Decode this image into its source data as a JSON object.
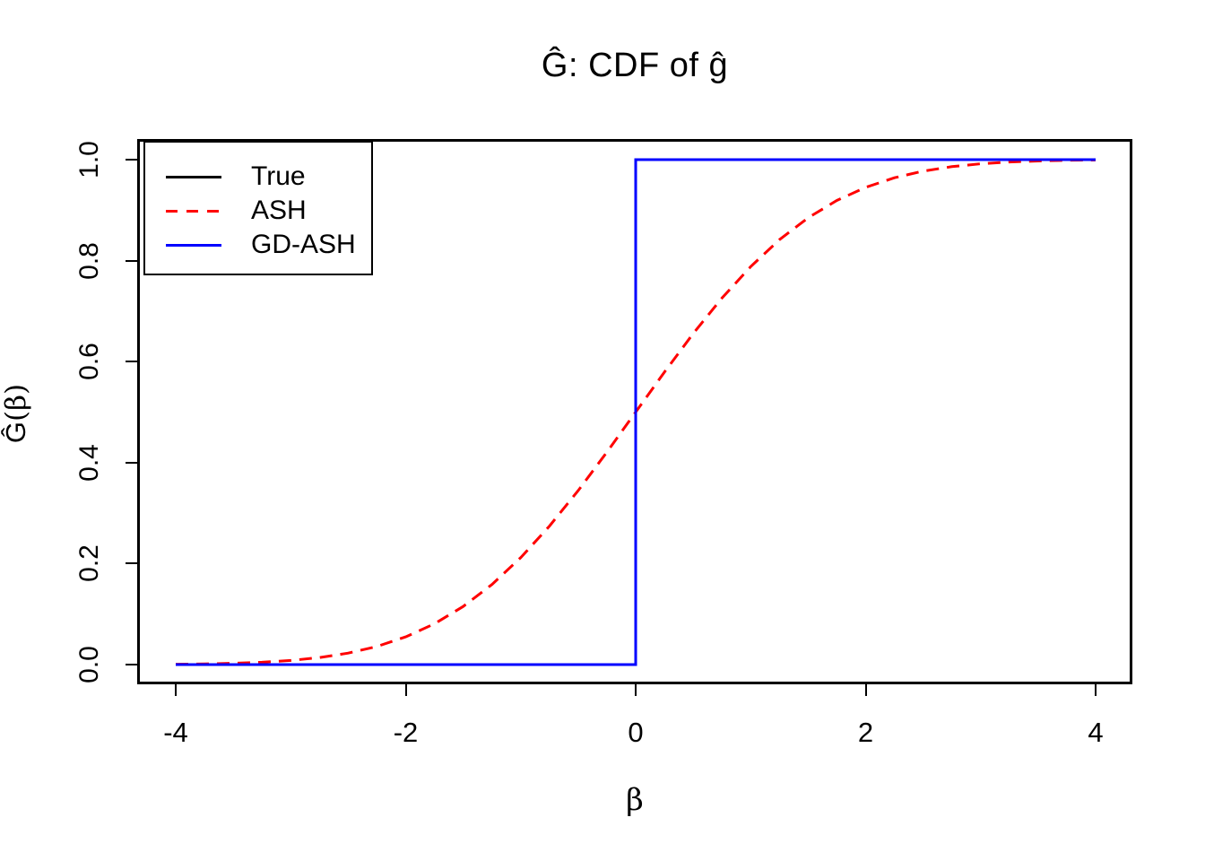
{
  "figure": {
    "background": "#FFFFFF",
    "axis_color": "#000000",
    "x_axis": {
      "tick_values": [
        -4,
        -2,
        0,
        2,
        4
      ],
      "tick_labels": [
        "-4",
        "-2",
        "0",
        "2",
        "4"
      ]
    },
    "y_axis": {
      "label_pre": "Ĝ",
      "label_rest": "(β)",
      "tick_values": [
        0.0,
        0.2,
        0.4,
        0.6,
        0.8,
        1.0
      ],
      "tick_labels": [
        "0.0",
        "0.2",
        "0.4",
        "0.6",
        "0.8",
        "1.0"
      ]
    }
  },
  "chart_data": {
    "type": "line",
    "title": "Ĝ: CDF of ĝ",
    "xlabel": "β",
    "ylabel": "Ĝ(β)",
    "xlim": [
      -4,
      4
    ],
    "ylim": [
      0,
      1
    ],
    "grid": false,
    "legend_position": "top-left",
    "series": [
      {
        "name": "True",
        "color": "#000000",
        "line_style": "solid",
        "x": [
          -4,
          0,
          0,
          4
        ],
        "y": [
          0,
          0,
          1,
          1
        ]
      },
      {
        "name": "ASH",
        "color": "#FF0000",
        "line_style": "dashed",
        "x": [
          -4,
          -3.75,
          -3.5,
          -3.25,
          -3,
          -2.75,
          -2.5,
          -2.25,
          -2,
          -1.75,
          -1.5,
          -1.25,
          -1,
          -0.75,
          -0.5,
          -0.25,
          0,
          0.25,
          0.5,
          0.75,
          1,
          1.25,
          1.5,
          1.75,
          2,
          2.25,
          2.5,
          2.75,
          3,
          3.25,
          3.5,
          3.75,
          4
        ],
        "y": [
          0.0007,
          0.0013,
          0.0026,
          0.0047,
          0.0082,
          0.0139,
          0.0228,
          0.0359,
          0.0548,
          0.0808,
          0.1151,
          0.1587,
          0.2119,
          0.2743,
          0.3446,
          0.4207,
          0.5,
          0.5793,
          0.6554,
          0.7257,
          0.7881,
          0.8413,
          0.8849,
          0.9192,
          0.9452,
          0.9641,
          0.9772,
          0.9861,
          0.9918,
          0.9953,
          0.9974,
          0.9987,
          0.9993
        ]
      },
      {
        "name": "GD-ASH",
        "color": "#0000FF",
        "line_style": "solid",
        "x": [
          -4,
          0,
          0,
          4
        ],
        "y": [
          0,
          0,
          1,
          1
        ]
      }
    ]
  }
}
